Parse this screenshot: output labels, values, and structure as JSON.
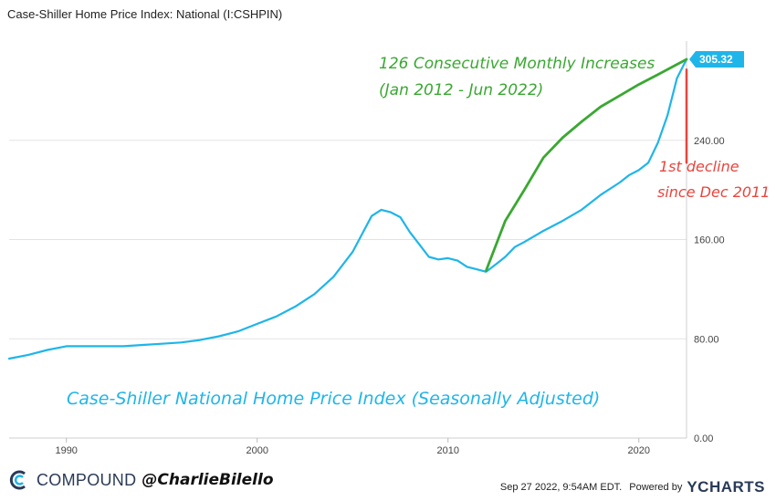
{
  "header": {
    "title": "Case-Shiller Home Price Index: National (I:CSHPIN)"
  },
  "chart_data": {
    "type": "line",
    "title": "Case-Shiller Home Price Index: National (I:CSHPIN)",
    "xlim": [
      1987.0,
      2022.5
    ],
    "ylim": [
      0,
      320
    ],
    "x_ticks": [
      1990,
      2000,
      2010,
      2020
    ],
    "x_tick_labels": [
      "1990",
      "2000",
      "2010",
      "2020"
    ],
    "y_ticks": [
      0,
      80,
      160,
      240
    ],
    "y_tick_labels": [
      "0.00",
      "80.00",
      "160.00",
      "240.00"
    ],
    "grid": true,
    "series": [
      {
        "color": "#1fb5e9",
        "points": [
          [
            1987.0,
            64
          ],
          [
            1988.0,
            67
          ],
          [
            1989.0,
            71
          ],
          [
            1990.0,
            74
          ],
          [
            1991.0,
            74
          ],
          [
            1992.0,
            74
          ],
          [
            1993.0,
            74
          ],
          [
            1994.0,
            75
          ],
          [
            1995.0,
            76
          ],
          [
            1996.0,
            77
          ],
          [
            1997.0,
            79
          ],
          [
            1998.0,
            82
          ],
          [
            1999.0,
            86
          ],
          [
            2000.0,
            92
          ],
          [
            2001.0,
            98
          ],
          [
            2002.0,
            106
          ],
          [
            2003.0,
            116
          ],
          [
            2004.0,
            130
          ],
          [
            2005.0,
            150
          ],
          [
            2006.0,
            179
          ],
          [
            2006.5,
            184
          ],
          [
            2007.0,
            182
          ],
          [
            2007.5,
            178
          ],
          [
            2008.0,
            166
          ],
          [
            2008.5,
            156
          ],
          [
            2009.0,
            146
          ],
          [
            2009.5,
            144
          ],
          [
            2010.0,
            145
          ],
          [
            2010.5,
            143
          ],
          [
            2011.0,
            138
          ],
          [
            2011.5,
            136
          ],
          [
            2012.0,
            134
          ],
          [
            2012.5,
            140
          ],
          [
            2013.0,
            146
          ],
          [
            2013.5,
            154
          ],
          [
            2014.0,
            158
          ],
          [
            2015.0,
            167
          ],
          [
            2016.0,
            175
          ],
          [
            2017.0,
            184
          ],
          [
            2018.0,
            196
          ],
          [
            2019.0,
            206
          ],
          [
            2019.5,
            212
          ],
          [
            2020.0,
            216
          ],
          [
            2020.5,
            222
          ],
          [
            2021.0,
            238
          ],
          [
            2021.5,
            260
          ],
          [
            2022.0,
            290
          ],
          [
            2022.5,
            305.32
          ]
        ]
      },
      {
        "color": "#3aa832",
        "points": [
          [
            2012.0,
            135
          ],
          [
            2013.0,
            175
          ],
          [
            2014.0,
            200
          ],
          [
            2015.0,
            226
          ],
          [
            2016.0,
            242
          ],
          [
            2017.0,
            255
          ],
          [
            2018.0,
            267
          ],
          [
            2019.0,
            276
          ],
          [
            2020.0,
            285
          ],
          [
            2021.0,
            293
          ],
          [
            2022.5,
            305.32
          ]
        ]
      },
      {
        "color": "#e8453c",
        "points": [
          [
            2022.5,
            297
          ],
          [
            2022.5,
            222
          ]
        ]
      }
    ],
    "last_value_label": "305.32",
    "annotations": [
      {
        "text": "126 Consecutive Monthly Increases",
        "color": "#3aa832"
      },
      {
        "text": "(Jan 2012 - Jun 2022)",
        "color": "#3aa832"
      },
      {
        "text": "1st decline",
        "color": "#e8453c"
      },
      {
        "text": "since Dec 2011",
        "color": "#e8453c"
      },
      {
        "text": "Case-Shiller National Home Price Index (Seasonally Adjusted)",
        "color": "#1fb5e9"
      }
    ]
  },
  "footer": {
    "brand": "COMPOUND",
    "handle": "@CharlieBilello",
    "timestamp": "Sep 27 2022, 9:54AM EDT.",
    "powered_by": "Powered by",
    "provider": "YCHARTS"
  }
}
